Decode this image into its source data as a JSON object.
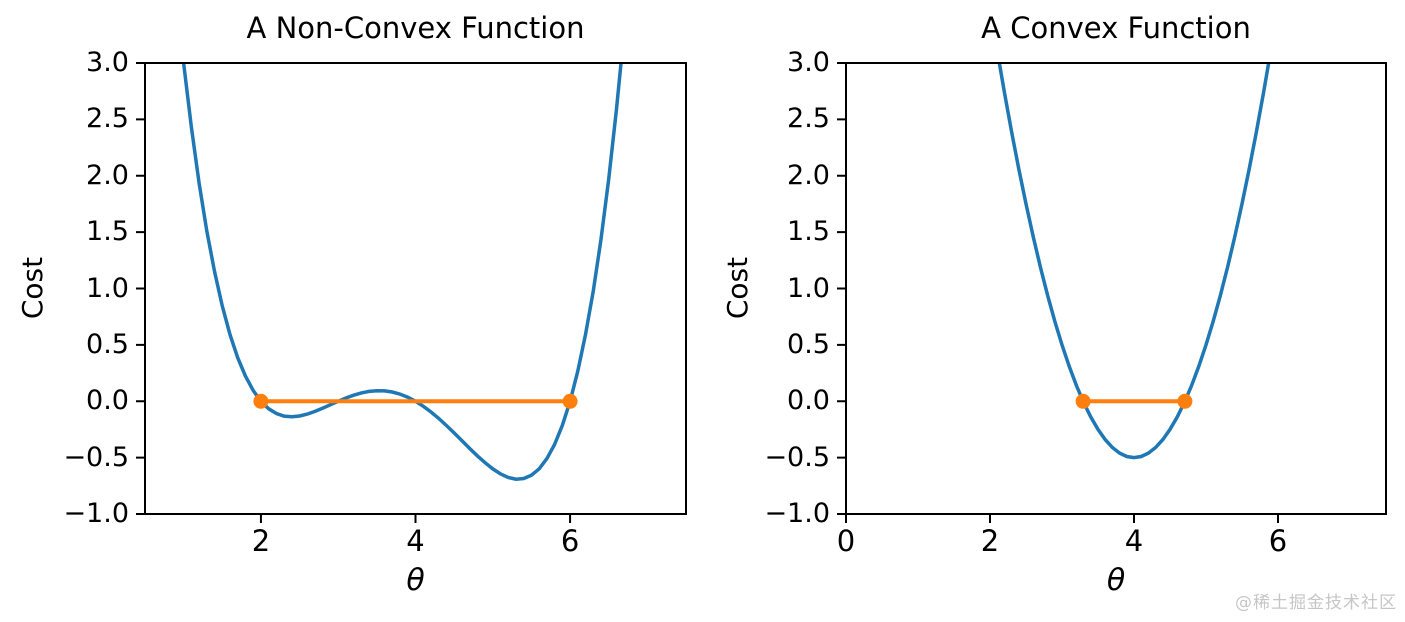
{
  "page": {
    "background": "#ffffff"
  },
  "watermark": {
    "text": "@稀土掘金技术社区",
    "color": "#c6c6c6"
  },
  "colors": {
    "curve": "#1f77b4",
    "chord": "#ff7f0e",
    "axis": "#000000"
  },
  "chart_data": [
    {
      "type": "line",
      "title": "A Non-Convex Function",
      "xlabel": "θ",
      "ylabel": "Cost",
      "xlim": [
        0.5,
        7.5
      ],
      "ylim": [
        -1.0,
        3.0
      ],
      "grid": false,
      "legend": null,
      "xticks": [
        2,
        4,
        6
      ],
      "xtick_labels": [
        "2",
        "4",
        "6"
      ],
      "yticks": [
        3.0,
        2.5,
        2.0,
        1.5,
        1.0,
        0.5,
        0.0,
        -0.5,
        -1.0
      ],
      "ytick_labels": [
        "3.0",
        "2.5",
        "2.0",
        "1.5",
        "1.0",
        "0.5",
        "0.0",
        "−0.5",
        "−1.0"
      ],
      "series": [
        {
          "name": "nonconvex-cost-curve",
          "color": "#1f77b4",
          "markers": false,
          "x": [
            0.95,
            1.0,
            1.1,
            1.2,
            1.3,
            1.4,
            1.5,
            1.6,
            1.7,
            1.8,
            1.9,
            2.0,
            2.1,
            2.2,
            2.3,
            2.4,
            2.5,
            2.6,
            2.7,
            2.8,
            2.9,
            3.0,
            3.1,
            3.2,
            3.3,
            3.4,
            3.5,
            3.6,
            3.7,
            3.8,
            3.9,
            4.0,
            4.1,
            4.2,
            4.3,
            4.4,
            4.5,
            4.6,
            4.7,
            4.8,
            4.9,
            5.0,
            5.1,
            5.2,
            5.3,
            5.4,
            5.5,
            5.6,
            5.7,
            5.8,
            5.9,
            6.0,
            6.1,
            6.2,
            6.3,
            6.4,
            6.5,
            6.6,
            6.7
          ],
          "y": [
            3.315,
            3.0,
            2.43,
            1.935,
            1.51,
            1.148,
            0.844,
            0.591,
            0.386,
            0.222,
            0.095,
            0.0,
            -0.067,
            -0.109,
            -0.132,
            -0.138,
            -0.131,
            -0.114,
            -0.09,
            -0.061,
            -0.031,
            0.0,
            0.029,
            0.054,
            0.074,
            0.087,
            0.094,
            0.092,
            0.082,
            0.063,
            0.036,
            0.0,
            -0.044,
            -0.095,
            -0.152,
            -0.215,
            -0.281,
            -0.349,
            -0.418,
            -0.484,
            -0.545,
            -0.6,
            -0.644,
            -0.676,
            -0.691,
            -0.685,
            -0.656,
            -0.599,
            -0.509,
            -0.383,
            -0.215,
            0.0,
            0.267,
            0.591,
            0.979,
            1.436,
            1.969,
            2.583,
            3.286
          ]
        },
        {
          "name": "nonconvex-chord",
          "color": "#ff7f0e",
          "markers": true,
          "x": [
            2.0,
            6.0
          ],
          "y": [
            0.0,
            0.0
          ]
        }
      ]
    },
    {
      "type": "line",
      "title": "A Convex Function",
      "xlabel": "θ",
      "ylabel": "Cost",
      "xlim": [
        0.0,
        7.5
      ],
      "ylim": [
        -1.0,
        3.0
      ],
      "grid": false,
      "legend": null,
      "xticks": [
        0,
        2,
        4,
        6
      ],
      "xtick_labels": [
        "0",
        "2",
        "4",
        "6"
      ],
      "yticks": [
        3.0,
        2.5,
        2.0,
        1.5,
        1.0,
        0.5,
        0.0,
        -0.5,
        -1.0
      ],
      "ytick_labels": [
        "3.0",
        "2.5",
        "2.0",
        "1.5",
        "1.0",
        "0.5",
        "0.0",
        "−0.5",
        "−1.0"
      ],
      "series": [
        {
          "name": "convex-cost-curve",
          "color": "#1f77b4",
          "markers": false,
          "x": [
            2.05,
            2.1,
            2.2,
            2.3,
            2.4,
            2.5,
            2.6,
            2.7,
            2.8,
            2.9,
            3.0,
            3.1,
            3.2,
            3.3,
            3.4,
            3.5,
            3.6,
            3.7,
            3.8,
            3.9,
            4.0,
            4.1,
            4.2,
            4.3,
            4.4,
            4.5,
            4.6,
            4.7,
            4.8,
            4.9,
            5.0,
            5.1,
            5.2,
            5.3,
            5.4,
            5.5,
            5.6,
            5.7,
            5.8,
            5.9,
            5.95
          ],
          "y": [
            3.303,
            3.11,
            2.74,
            2.39,
            2.06,
            1.75,
            1.46,
            1.19,
            0.94,
            0.71,
            0.5,
            0.31,
            0.14,
            -0.01,
            -0.14,
            -0.25,
            -0.34,
            -0.41,
            -0.46,
            -0.49,
            -0.5,
            -0.49,
            -0.46,
            -0.41,
            -0.34,
            -0.25,
            -0.14,
            -0.01,
            0.14,
            0.31,
            0.5,
            0.71,
            0.94,
            1.19,
            1.46,
            1.75,
            2.06,
            2.39,
            2.74,
            3.11,
            3.303
          ]
        },
        {
          "name": "convex-chord",
          "color": "#ff7f0e",
          "markers": true,
          "x": [
            3.293,
            4.707
          ],
          "y": [
            0.0,
            0.0
          ]
        }
      ]
    }
  ]
}
